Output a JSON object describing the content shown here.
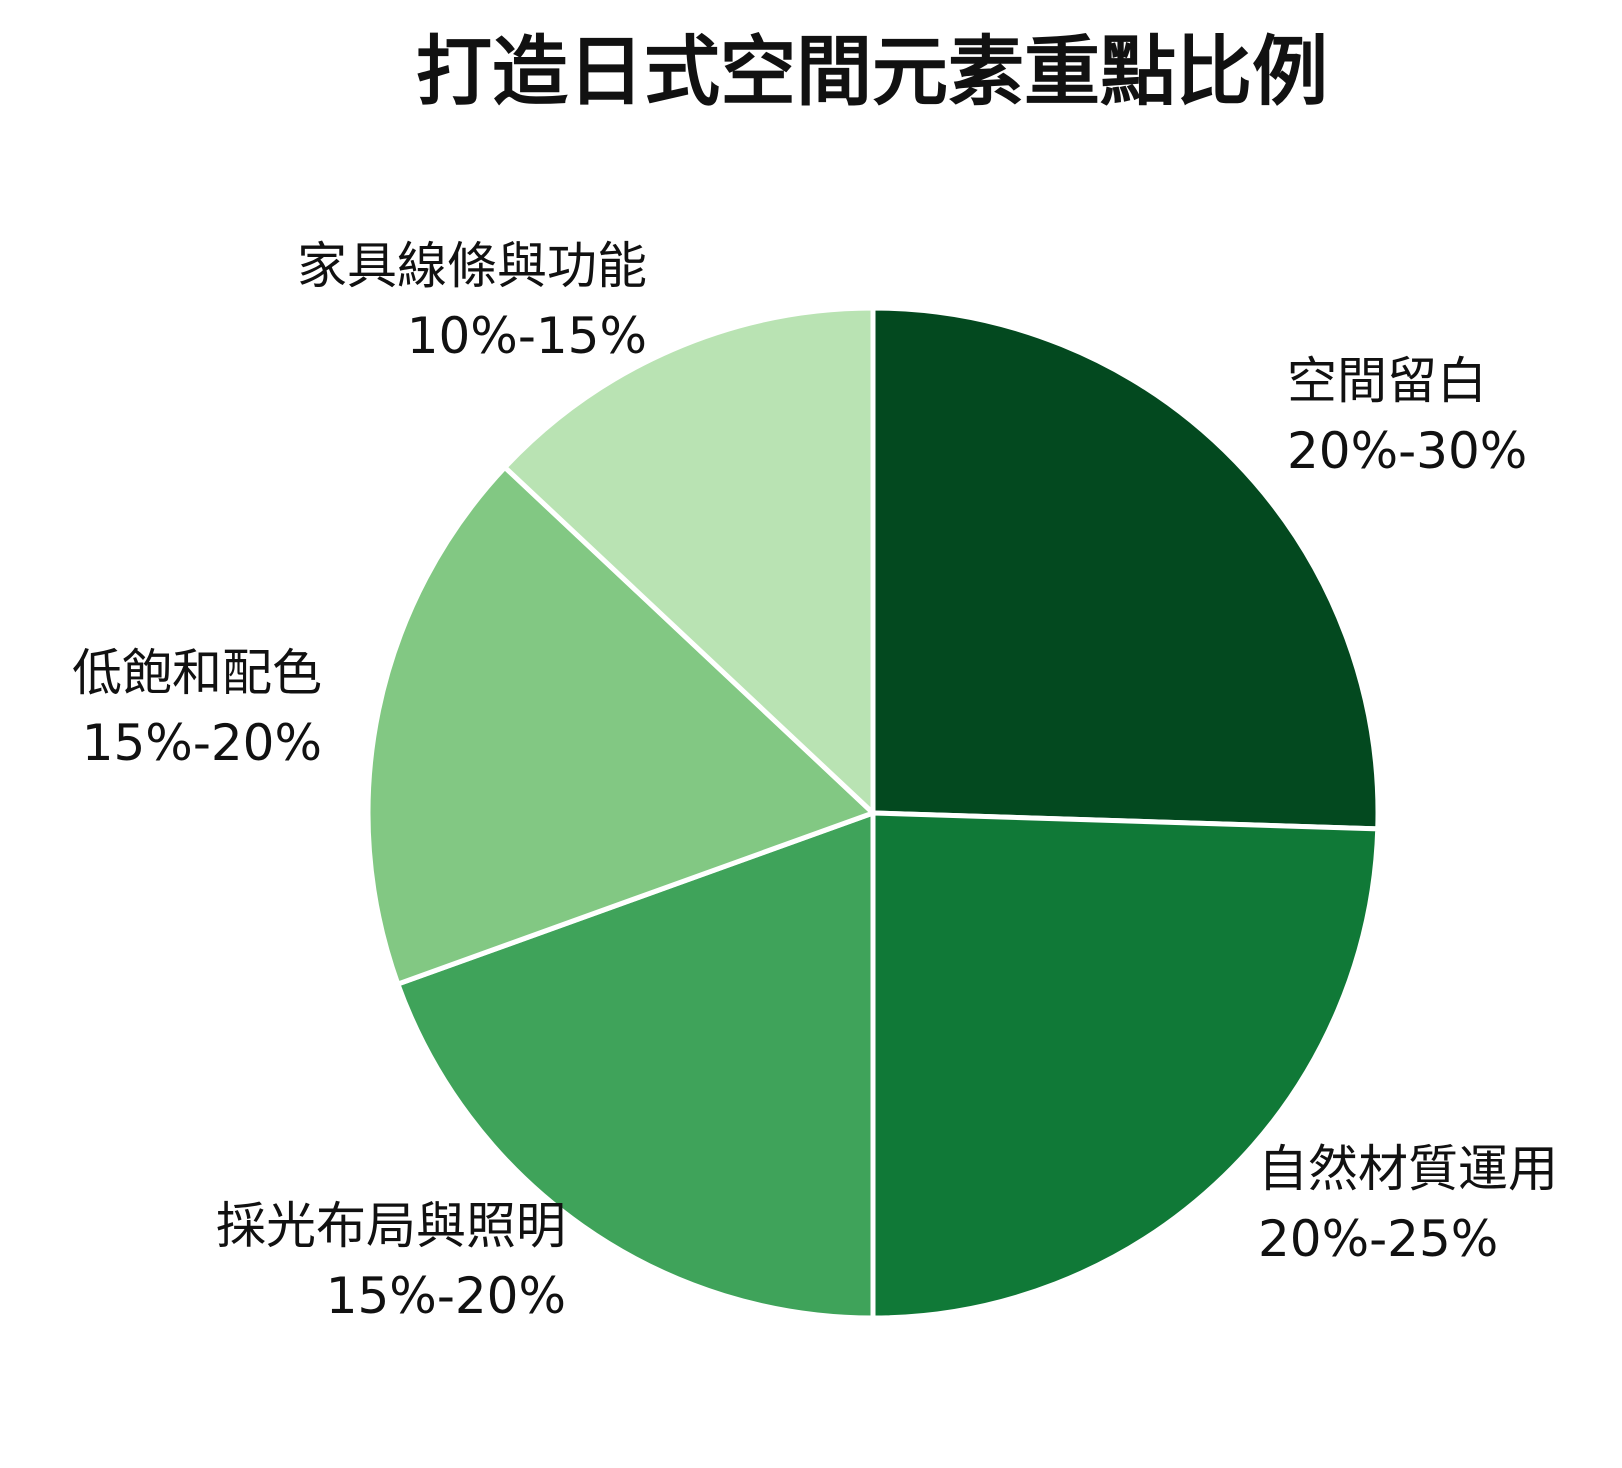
{
  "chart_data": {
    "type": "pie",
    "title": "打造日式空間元素重點比例",
    "start": "top",
    "direction": "clockwise",
    "legend": "none",
    "slices": [
      {
        "name": "空間留白",
        "range_label": "20%-30%",
        "value": 25.5,
        "color": "#03491F"
      },
      {
        "name": "自然材質運用",
        "range_label": "20%-25%",
        "value": 24.5,
        "color": "#107937"
      },
      {
        "name": "採光布局與照明",
        "range_label": "15%-20%",
        "value": 19.5,
        "color": "#3FA35A"
      },
      {
        "name": "低飽和配色",
        "range_label": "15%-20%",
        "value": 17.5,
        "color": "#82C883"
      },
      {
        "name": "家具線條與功能",
        "range_label": "10%-15%",
        "value": 13.0,
        "color": "#B9E3B3"
      }
    ]
  }
}
